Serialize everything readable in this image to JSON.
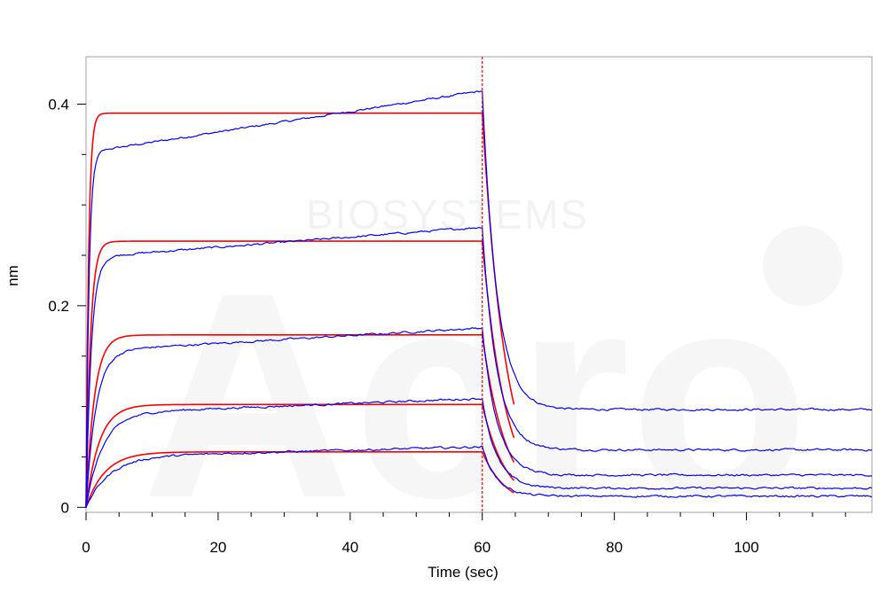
{
  "chart_data": {
    "type": "line",
    "xlabel": "Time (sec)",
    "ylabel": "nm",
    "xlim": [
      0,
      119
    ],
    "ylim": [
      -0.005,
      0.447
    ],
    "x_ticks": [
      0,
      20,
      40,
      60,
      80,
      100
    ],
    "x_tick_labels": [
      "0",
      "20",
      "40",
      "60",
      "80",
      "100"
    ],
    "y_ticks": [
      0,
      0.2,
      0.4
    ],
    "y_tick_labels": [
      "0",
      "0.2",
      "0.4"
    ],
    "association_end": 60,
    "grid": false,
    "colors": {
      "measured": "#0000ff",
      "fit": "#ff0000",
      "boundary": "#ff0000"
    },
    "measured_series": [
      {
        "plateau": 0.352,
        "drift_end": 0.413,
        "t_fast": 0.45,
        "dissoc_level": 0.097,
        "t_off": 2.2
      },
      {
        "plateau": 0.248,
        "drift_end": 0.278,
        "t_fast": 0.8,
        "dissoc_level": 0.057,
        "t_off": 2.2
      },
      {
        "plateau": 0.155,
        "drift_end": 0.178,
        "t_fast": 1.5,
        "dissoc_level": 0.032,
        "t_off": 2.2
      },
      {
        "plateau": 0.093,
        "drift_end": 0.108,
        "t_fast": 2.5,
        "dissoc_level": 0.019,
        "t_off": 2.2
      },
      {
        "plateau": 0.05,
        "drift_end": 0.06,
        "t_fast": 3.5,
        "dissoc_level": 0.011,
        "t_off": 2.2
      }
    ],
    "fit_series": [
      {
        "plateau": 0.391,
        "k_on": 2.6,
        "fit_end": 65
      },
      {
        "plateau": 0.264,
        "k_on": 1.5,
        "fit_end": 65
      },
      {
        "plateau": 0.171,
        "k_on": 0.8,
        "fit_end": 65
      },
      {
        "plateau": 0.102,
        "k_on": 0.5,
        "fit_end": 65
      },
      {
        "plateau": 0.055,
        "k_on": 0.35,
        "fit_end": 65
      }
    ],
    "fit_k_off": 0.28
  },
  "watermark": {
    "text": "BIOSYSTEMS",
    "logo_text": "Acro"
  }
}
